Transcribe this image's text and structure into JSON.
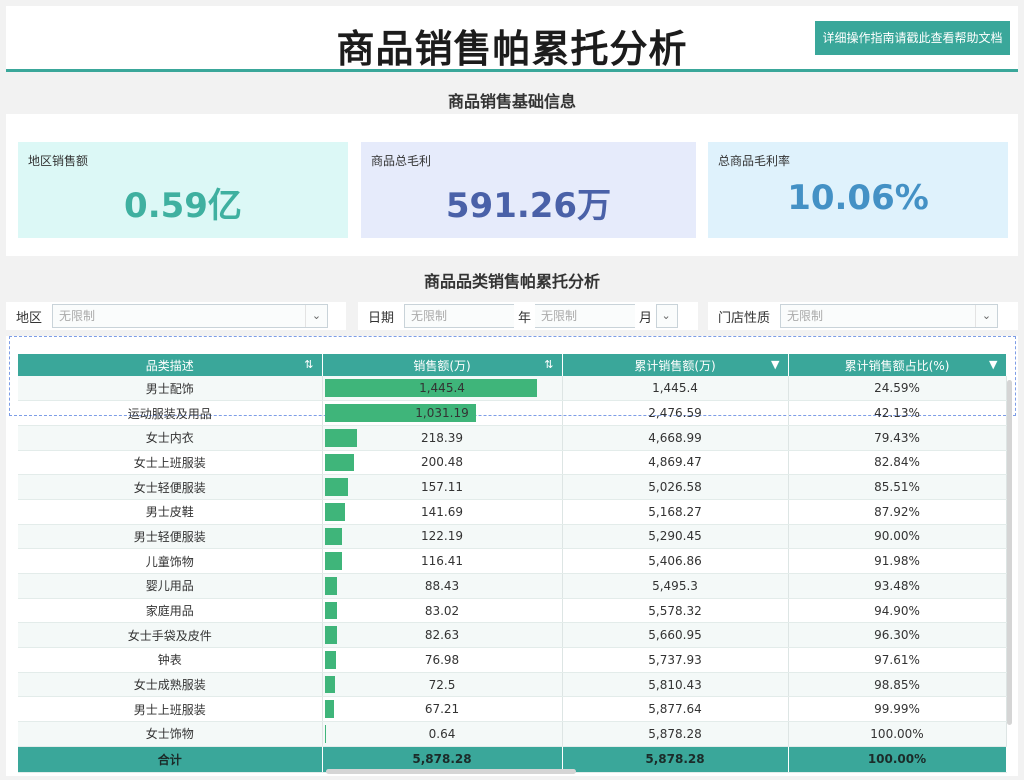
{
  "header": {
    "title": "商品销售帕累托分析",
    "help_button": "详细操作指南请戳此查看帮助文档"
  },
  "sections": {
    "basic_info": "商品销售基础信息",
    "category_analysis": "商品品类销售帕累托分析"
  },
  "kpis": [
    {
      "label": "地区销售额",
      "value": "0.59亿",
      "color": "#3fb0a0",
      "bg": "#dcf8f6"
    },
    {
      "label": "商品总毛利",
      "value": "591.26万",
      "color": "#4a61a8",
      "bg": "#e6ebfb"
    },
    {
      "label": "总商品毛利率",
      "value": "10.06%",
      "color": "#4491c5",
      "bg": "#dff2fc"
    }
  ],
  "filters": {
    "region_label": "地区",
    "region_value": "无限制",
    "date_label": "日期",
    "year_value": "无限制",
    "year_unit": "年",
    "month_value": "无限制",
    "month_unit": "月",
    "store_label": "门店性质",
    "store_value": "无限制"
  },
  "table": {
    "headers": [
      "品类描述",
      "销售额(万)",
      "累计销售额(万)",
      "累计销售额占比(%)"
    ],
    "max_sales": 1445.4,
    "rows": [
      {
        "category": "男士配饰",
        "sales": "1,445.4",
        "sales_num": 1445.4,
        "cum": "1,445.4",
        "pct": "24.59%"
      },
      {
        "category": "运动服装及用品",
        "sales": "1,031.19",
        "sales_num": 1031.19,
        "cum": "2,476.59",
        "pct": "42.13%"
      },
      {
        "category": "女士内衣",
        "sales": "218.39",
        "sales_num": 218.39,
        "cum": "4,668.99",
        "pct": "79.43%"
      },
      {
        "category": "女士上班服装",
        "sales": "200.48",
        "sales_num": 200.48,
        "cum": "4,869.47",
        "pct": "82.84%"
      },
      {
        "category": "女士轻便服装",
        "sales": "157.11",
        "sales_num": 157.11,
        "cum": "5,026.58",
        "pct": "85.51%"
      },
      {
        "category": "男士皮鞋",
        "sales": "141.69",
        "sales_num": 141.69,
        "cum": "5,168.27",
        "pct": "87.92%"
      },
      {
        "category": "男士轻便服装",
        "sales": "122.19",
        "sales_num": 122.19,
        "cum": "5,290.45",
        "pct": "90.00%"
      },
      {
        "category": "儿童饰物",
        "sales": "116.41",
        "sales_num": 116.41,
        "cum": "5,406.86",
        "pct": "91.98%"
      },
      {
        "category": "婴儿用品",
        "sales": "88.43",
        "sales_num": 88.43,
        "cum": "5,495.3",
        "pct": "93.48%"
      },
      {
        "category": "家庭用品",
        "sales": "83.02",
        "sales_num": 83.02,
        "cum": "5,578.32",
        "pct": "94.90%"
      },
      {
        "category": "女士手袋及皮件",
        "sales": "82.63",
        "sales_num": 82.63,
        "cum": "5,660.95",
        "pct": "96.30%"
      },
      {
        "category": "钟表",
        "sales": "76.98",
        "sales_num": 76.98,
        "cum": "5,737.93",
        "pct": "97.61%"
      },
      {
        "category": "女士成熟服装",
        "sales": "72.5",
        "sales_num": 72.5,
        "cum": "5,810.43",
        "pct": "98.85%"
      },
      {
        "category": "男士上班服装",
        "sales": "67.21",
        "sales_num": 67.21,
        "cum": "5,877.64",
        "pct": "99.99%"
      },
      {
        "category": "女士饰物",
        "sales": "0.64",
        "sales_num": 0.64,
        "cum": "5,878.28",
        "pct": "100.00%"
      }
    ],
    "total": {
      "label": "合计",
      "sales": "5,878.28",
      "cum": "5,878.28",
      "pct": "100.00%"
    }
  }
}
